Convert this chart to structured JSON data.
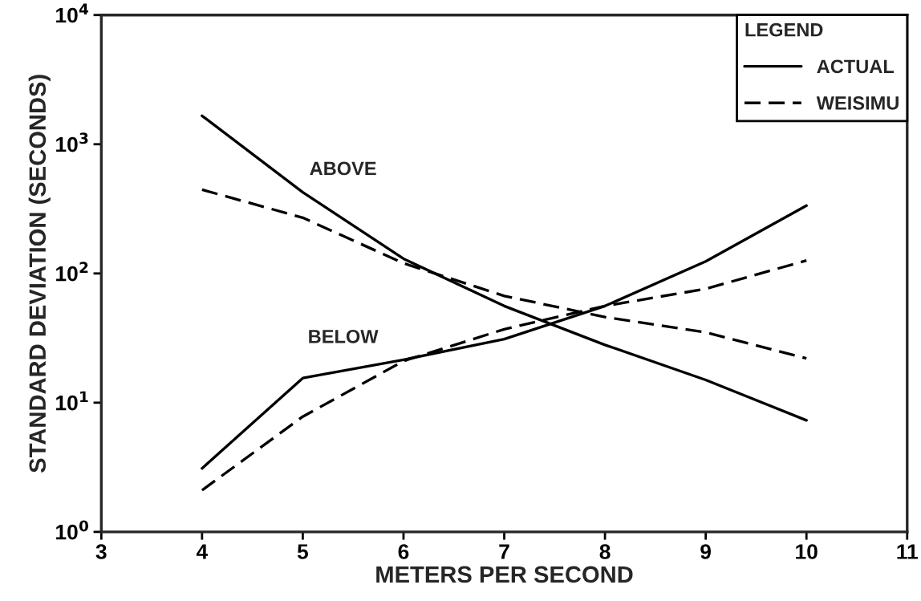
{
  "chart_data": {
    "type": "line",
    "xlabel": "METERS PER SECOND",
    "ylabel": "STANDARD DEVIATION (SECONDS)",
    "legend_title": "LEGEND",
    "legend": "top right",
    "log": "y",
    "grid": false,
    "xlim": [
      3,
      11
    ],
    "xticks": [
      3,
      4,
      5,
      6,
      7,
      8,
      9,
      10,
      11
    ],
    "ylim": [
      1,
      10000
    ],
    "yticks": [
      {
        "value": 1,
        "label": "10$^{0}$"
      },
      {
        "value": 10,
        "label": "10$^{1}$"
      },
      {
        "value": 100,
        "label": "10$^{2}$"
      },
      {
        "value": 1000,
        "label": "10$^{3}$"
      },
      {
        "value": 10000,
        "label": "10$^{4}$"
      }
    ],
    "x": [
      4,
      5,
      6,
      7,
      8,
      9,
      10
    ],
    "series": [
      {
        "name": "ACTUAL",
        "color": "#000000",
        "line_style": "solid",
        "values": [
          1660,
          425,
          130,
          56,
          28,
          15,
          7.3
        ]
      },
      {
        "name": "WEISIMU",
        "color": "#000000",
        "line_style": "dashed",
        "values": [
          445,
          270,
          120,
          67,
          46,
          35,
          22
        ]
      },
      {
        "color": "#000000",
        "line_style": "solid",
        "values": [
          3.1,
          15.5,
          21.5,
          31,
          56,
          124,
          335
        ]
      },
      {
        "color": "#000000",
        "line_style": "dashed",
        "values": [
          2.1,
          7.8,
          21,
          37,
          56,
          76,
          126
        ]
      }
    ],
    "annotations": [
      "ABOVE",
      "BELOW"
    ]
  }
}
